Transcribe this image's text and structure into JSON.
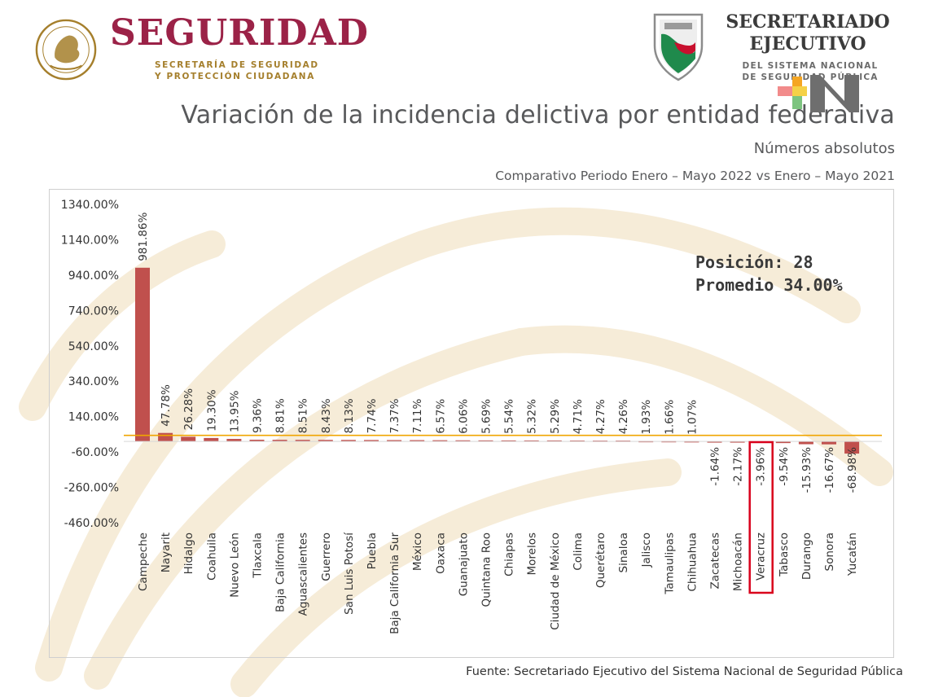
{
  "header": {
    "brand_title": "SEGURIDAD",
    "brand_subtitle_line1": "SECRETARÍA DE SEGURIDAD",
    "brand_subtitle_line2": "Y PROTECCIÓN CIUDADANA",
    "sesnsp_title_line1": "SECRETARIADO",
    "sesnsp_title_line2": "EJECUTIVO",
    "sesnsp_subtitle_line1": "DEL SISTEMA NACIONAL",
    "sesnsp_subtitle_line2": "DE SEGURIDAD PÚBLICA",
    "seal_icon": "mexico-coat-of-arms-icon",
    "shield_icon": "sesnsp-shield-icon",
    "news_logo_icon": "n-letter-logo-icon"
  },
  "colors": {
    "brand": "#9b2247",
    "gold": "#a57f2c",
    "bar": "#c0504d",
    "average_line": "#f0a500",
    "highlight_box": "#d9001b",
    "text": "#58595b"
  },
  "chart_data": {
    "type": "bar",
    "title": "Variación de la incidencia delictiva por entidad federativa",
    "subtitle": "Números absolutos",
    "period": "Comparativo Periodo Enero – Mayo 2022 vs Enero – Mayo 2021",
    "categories": [
      "Campeche",
      "Nayarit",
      "Hidalgo",
      "Coahuila",
      "Nuevo León",
      "Tlaxcala",
      "Baja California",
      "Aguascalientes",
      "Guerrero",
      "San Luis Potosí",
      "Puebla",
      "Baja California Sur",
      "México",
      "Oaxaca",
      "Guanajuato",
      "Quintana Roo",
      "Chiapas",
      "Morelos",
      "Ciudad de México",
      "Colima",
      "Querétaro",
      "Sinaloa",
      "Jalisco",
      "Tamaulipas",
      "Chihuahua",
      "Zacatecas",
      "Michoacán",
      "Veracruz",
      "Tabasco",
      "Durango",
      "Sonora",
      "Yucatán"
    ],
    "values": [
      981.86,
      47.78,
      26.28,
      19.3,
      13.95,
      9.36,
      8.81,
      8.51,
      8.43,
      8.13,
      7.74,
      7.37,
      7.11,
      6.57,
      6.06,
      5.69,
      5.54,
      5.32,
      5.29,
      4.71,
      4.27,
      4.26,
      1.93,
      1.66,
      1.07,
      -1.64,
      -2.17,
      -3.96,
      -9.54,
      -15.93,
      -16.67,
      -68.98
    ],
    "value_labels": [
      "981.86%",
      "47.78%",
      "26.28%",
      "19.30%",
      "13.95%",
      "9.36%",
      "8.81%",
      "8.51%",
      "8.43%",
      "8.13%",
      "7.74%",
      "7.37%",
      "7.11%",
      "6.57%",
      "6.06%",
      "5.69%",
      "5.54%",
      "5.32%",
      "5.29%",
      "4.71%",
      "4.27%",
      "4.26%",
      "1.93%",
      "1.66%",
      "1.07%",
      "-1.64%",
      "-2.17%",
      "-3.96%",
      "-9.54%",
      "-15.93%",
      "-16.67%",
      "-68.98%"
    ],
    "yticks": [
      1340,
      1140,
      940,
      740,
      540,
      340,
      140,
      -60,
      -260,
      -460
    ],
    "ytick_labels": [
      "1340.00%",
      "1140.00%",
      "940.00%",
      "740.00%",
      "540.00%",
      "340.00%",
      "140.00%",
      "-60.00%",
      "-260.00%",
      "-460.00%"
    ],
    "ylim": [
      -460,
      1340
    ],
    "average": 34.0,
    "highlight_category": "Veracruz",
    "grid": false,
    "legend": "none"
  },
  "annotation": {
    "position_line": "Posición: 28",
    "average_line": "Promedio 34.00%"
  },
  "footer": {
    "source": "Fuente: Secretariado Ejecutivo del Sistema Nacional de Seguridad Pública"
  }
}
